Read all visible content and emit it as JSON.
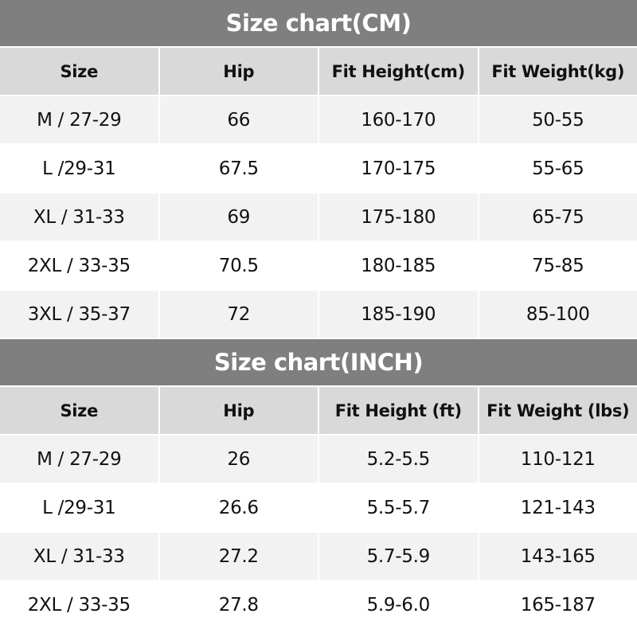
{
  "tables": [
    {
      "title": "Size chart(CM)",
      "headers": [
        "Size",
        "Hip",
        "Fit Height(cm)",
        "Fit Weight(kg)"
      ],
      "rows": [
        [
          "M / 27-29",
          "66",
          "160-170",
          "50-55"
        ],
        [
          "L /29-31",
          "67.5",
          "170-175",
          "55-65"
        ],
        [
          "XL / 31-33",
          "69",
          "175-180",
          "65-75"
        ],
        [
          "2XL / 33-35",
          "70.5",
          "180-185",
          "75-85"
        ],
        [
          "3XL / 35-37",
          "72",
          "185-190",
          "85-100"
        ]
      ]
    },
    {
      "title": "Size chart(INCH)",
      "headers": [
        "Size",
        "Hip",
        "Fit Height (ft)",
        "Fit Weight (lbs)"
      ],
      "rows": [
        [
          "M / 27-29",
          "26",
          "5.2-5.5",
          "110-121"
        ],
        [
          "L /29-31",
          "26.6",
          "5.5-5.7",
          "121-143"
        ],
        [
          "XL / 31-33",
          "27.2",
          "5.7-5.9",
          "143-165"
        ],
        [
          "2XL / 33-35",
          "27.8",
          "5.9-6.0",
          "165-187"
        ]
      ]
    }
  ],
  "colors": {
    "title_bg": "#7f7f7f",
    "header_bg": "#d9d9d9",
    "stripe_bg": "#f2f2f2",
    "row_bg": "#ffffff"
  }
}
